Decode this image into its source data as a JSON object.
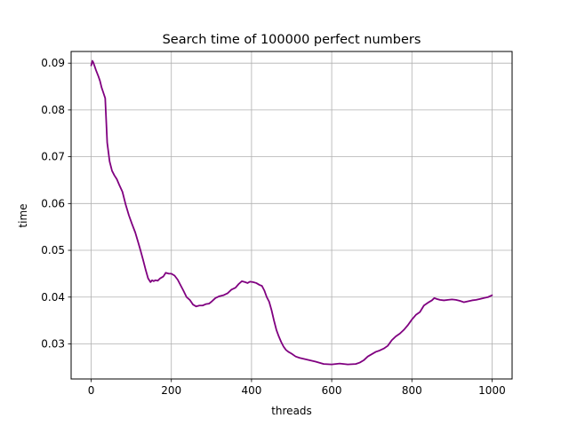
{
  "chart_data": {
    "type": "line",
    "title": "Search time of 100000 perfect numbers",
    "xlabel": "threads",
    "ylabel": "time",
    "xlim": [
      -50,
      1050
    ],
    "ylim": [
      0.0225,
      0.0925
    ],
    "xticks": [
      0,
      200,
      400,
      600,
      800,
      1000
    ],
    "yticks": [
      0.03,
      0.04,
      0.05,
      0.06,
      0.07,
      0.08,
      0.09
    ],
    "xtick_labels": [
      "0",
      "200",
      "400",
      "600",
      "800",
      "1000"
    ],
    "ytick_labels": [
      "0.03",
      "0.04",
      "0.05",
      "0.06",
      "0.07",
      "0.08",
      "0.09"
    ],
    "grid": true,
    "series": [
      {
        "color": "#800080",
        "x": [
          0,
          3,
          5,
          8,
          12,
          18,
          22,
          26,
          30,
          35,
          40,
          46,
          52,
          58,
          64,
          70,
          78,
          86,
          94,
          102,
          110,
          118,
          124,
          130,
          136,
          142,
          148,
          152,
          156,
          160,
          166,
          172,
          180,
          186,
          194,
          200,
          208,
          216,
          222,
          230,
          238,
          246,
          254,
          262,
          270,
          278,
          286,
          294,
          300,
          310,
          320,
          330,
          340,
          350,
          360,
          368,
          376,
          384,
          390,
          396,
          404,
          412,
          420,
          426,
          432,
          438,
          444,
          450,
          456,
          462,
          468,
          474,
          480,
          486,
          492,
          500,
          510,
          520,
          540,
          560,
          580,
          600,
          620,
          640,
          660,
          670,
          680,
          690,
          700,
          710,
          720,
          730,
          740,
          750,
          760,
          770,
          780,
          790,
          800,
          810,
          820,
          830,
          840,
          850,
          856,
          862,
          870,
          880,
          890,
          900,
          910,
          920,
          930,
          940,
          950,
          960,
          970,
          980,
          990,
          1000
        ],
        "y": [
          0.0895,
          0.0905,
          0.0902,
          0.0895,
          0.0885,
          0.0872,
          0.0862,
          0.0848,
          0.0838,
          0.0825,
          0.073,
          0.069,
          0.067,
          0.066,
          0.0652,
          0.064,
          0.0625,
          0.0598,
          0.0575,
          0.0556,
          0.0538,
          0.0515,
          0.0497,
          0.0478,
          0.0458,
          0.044,
          0.0432,
          0.0436,
          0.0434,
          0.0436,
          0.0435,
          0.044,
          0.0444,
          0.0452,
          0.045,
          0.045,
          0.0446,
          0.0437,
          0.0427,
          0.0414,
          0.04,
          0.0394,
          0.0384,
          0.038,
          0.0382,
          0.0382,
          0.0385,
          0.0386,
          0.039,
          0.0398,
          0.0402,
          0.0404,
          0.0408,
          0.0416,
          0.042,
          0.0428,
          0.0434,
          0.0432,
          0.043,
          0.0433,
          0.0432,
          0.043,
          0.0426,
          0.0424,
          0.0414,
          0.04,
          0.039,
          0.0372,
          0.035,
          0.033,
          0.0316,
          0.0304,
          0.0294,
          0.0287,
          0.0283,
          0.0279,
          0.0273,
          0.027,
          0.0266,
          0.0262,
          0.0257,
          0.0256,
          0.0258,
          0.0256,
          0.0257,
          0.026,
          0.0265,
          0.0273,
          0.0278,
          0.0283,
          0.0286,
          0.029,
          0.0296,
          0.0308,
          0.0316,
          0.0322,
          0.033,
          0.034,
          0.0352,
          0.0362,
          0.0368,
          0.0382,
          0.0388,
          0.0393,
          0.0398,
          0.0396,
          0.0394,
          0.0393,
          0.0394,
          0.0395,
          0.0394,
          0.0392,
          0.0389,
          0.0391,
          0.0393,
          0.0394,
          0.0396,
          0.0398,
          0.04,
          0.0404
        ]
      }
    ]
  }
}
